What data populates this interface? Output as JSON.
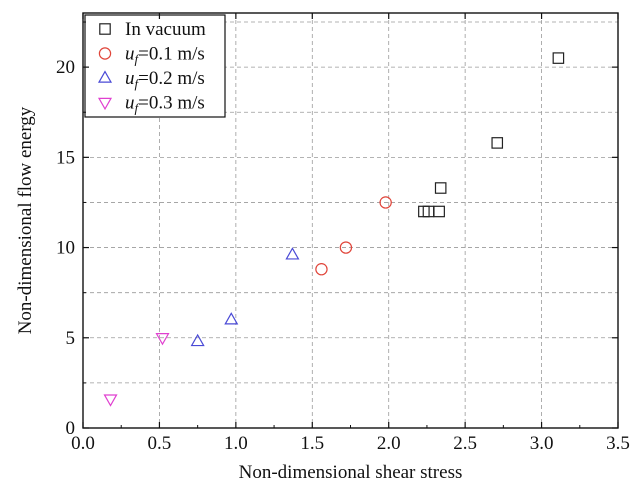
{
  "chart_data": {
    "type": "scatter",
    "xlabel": "Non-dimensional shear stress",
    "ylabel": "Non-dimensional flow energy",
    "xlim": [
      0.0,
      3.5
    ],
    "ylim": [
      0,
      23
    ],
    "x_ticks": [
      "0.0",
      "0.5",
      "1.0",
      "1.5",
      "2.0",
      "2.5",
      "3.0",
      "3.5"
    ],
    "y_ticks": [
      "0",
      "5",
      "10",
      "15",
      "20"
    ],
    "grid": true,
    "legend_position": "top-left",
    "series": [
      {
        "name": "In vacuum",
        "label_parts": [
          {
            "t": "In vacuum"
          }
        ],
        "marker": "square",
        "color": "#222222",
        "points": [
          {
            "x": 2.23,
            "y": 12.0
          },
          {
            "x": 2.26,
            "y": 12.0
          },
          {
            "x": 2.33,
            "y": 12.0
          },
          {
            "x": 2.34,
            "y": 13.3
          },
          {
            "x": 2.71,
            "y": 15.8
          },
          {
            "x": 3.11,
            "y": 20.5
          }
        ]
      },
      {
        "name": "uf=0.1 m/s",
        "label_parts": [
          {
            "t": "u"
          },
          {
            "t": "f",
            "sub": true
          },
          {
            "t": "=0.1 m/s"
          }
        ],
        "marker": "circle",
        "color": "#e0453a",
        "points": [
          {
            "x": 1.56,
            "y": 8.8
          },
          {
            "x": 1.72,
            "y": 10.0
          },
          {
            "x": 1.98,
            "y": 12.5
          }
        ]
      },
      {
        "name": "uf=0.2 m/s",
        "label_parts": [
          {
            "t": "u"
          },
          {
            "t": "f",
            "sub": true
          },
          {
            "t": "=0.2 m/s"
          }
        ],
        "marker": "triangle-up",
        "color": "#4a4ad6",
        "points": [
          {
            "x": 0.75,
            "y": 4.8
          },
          {
            "x": 0.97,
            "y": 6.0
          },
          {
            "x": 1.37,
            "y": 9.6
          }
        ]
      },
      {
        "name": "uf=0.3 m/s",
        "label_parts": [
          {
            "t": "u"
          },
          {
            "t": "f",
            "sub": true
          },
          {
            "t": "=0.3 m/s"
          }
        ],
        "marker": "triangle-down",
        "color": "#e040d0",
        "points": [
          {
            "x": 0.18,
            "y": 1.6
          },
          {
            "x": 0.52,
            "y": 5.0
          }
        ]
      }
    ]
  }
}
